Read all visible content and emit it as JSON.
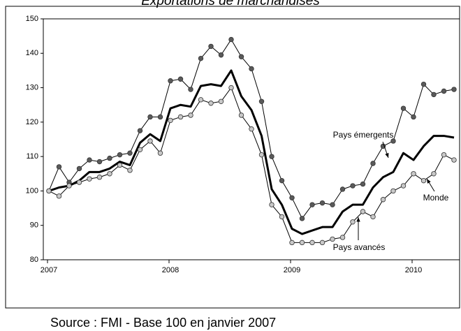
{
  "chart_data": {
    "type": "line",
    "title": "Exportations de marchandises",
    "source": "Source : FMI - Base 100 en janvier 2007",
    "categories": [
      "2007",
      null,
      null,
      null,
      null,
      null,
      null,
      null,
      null,
      null,
      null,
      null,
      "2008",
      null,
      null,
      null,
      null,
      null,
      null,
      null,
      null,
      null,
      null,
      null,
      "2009",
      null,
      null,
      null,
      null,
      null,
      null,
      null,
      null,
      null,
      null,
      null,
      "2010",
      null,
      null,
      null,
      null
    ],
    "series": [
      {
        "name": "Pays émergents",
        "color": "#000000",
        "marker_color": "#5a5a5a",
        "line_width": 1,
        "values": [
          100,
          107,
          102.5,
          106.5,
          109,
          108.5,
          109.5,
          110.5,
          111,
          117.5,
          121.5,
          121.5,
          132,
          132.5,
          129.5,
          138.5,
          142,
          139.5,
          144,
          139,
          135.5,
          126,
          110,
          103,
          98,
          92,
          96,
          96.5,
          96,
          100.5,
          101.5,
          102,
          108,
          113,
          114.5,
          124,
          121.5,
          131,
          128,
          129,
          129.5
        ]
      },
      {
        "name": "Monde",
        "color": "#000000",
        "marker_color": null,
        "line_width": 3,
        "values": [
          100,
          101,
          101.5,
          103,
          105.5,
          105.5,
          106.5,
          108.5,
          107.5,
          114,
          116.5,
          114.5,
          124,
          125,
          124.5,
          130.5,
          131,
          130.5,
          135,
          127.5,
          123.5,
          116,
          100.5,
          96,
          89,
          87.5,
          88.5,
          89.5,
          89.5,
          94,
          96,
          96,
          101,
          104,
          105.5,
          111,
          109,
          113,
          116,
          116,
          115.5
        ]
      },
      {
        "name": "Pays avancés",
        "color": "#000000",
        "marker_color": "#c8c8c8",
        "line_width": 1,
        "values": [
          100,
          98.5,
          101.5,
          102.5,
          103.5,
          104,
          105,
          107.5,
          106,
          112,
          114.5,
          111,
          120.5,
          121.5,
          122,
          126.5,
          125.5,
          126,
          130,
          122,
          118,
          110.5,
          96,
          92.5,
          85,
          85,
          85,
          85,
          86,
          86.5,
          91,
          94,
          92.5,
          97.5,
          100,
          101.5,
          105,
          103,
          105,
          110.5,
          109
        ]
      }
    ],
    "ylim": [
      80,
      150
    ],
    "yticks": [
      80,
      90,
      100,
      110,
      120,
      130,
      140,
      150
    ]
  }
}
